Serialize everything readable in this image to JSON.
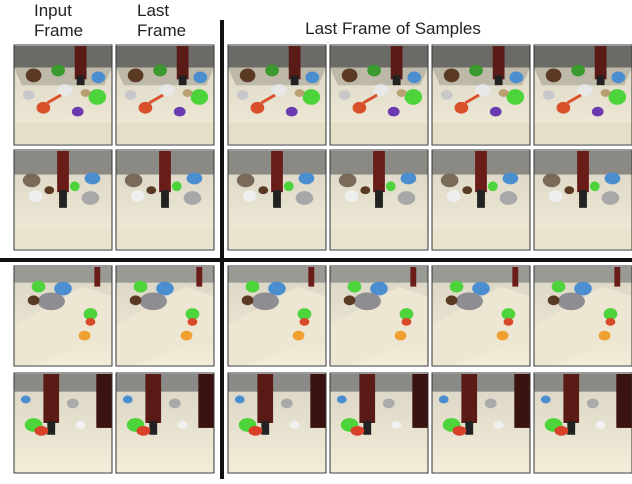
{
  "header": {
    "columns": [
      {
        "lines": [
          "Input",
          "Frame"
        ]
      },
      {
        "lines": [
          "Last",
          "Frame"
        ]
      }
    ],
    "samples_label": "Last Frame of Samples"
  }
}
